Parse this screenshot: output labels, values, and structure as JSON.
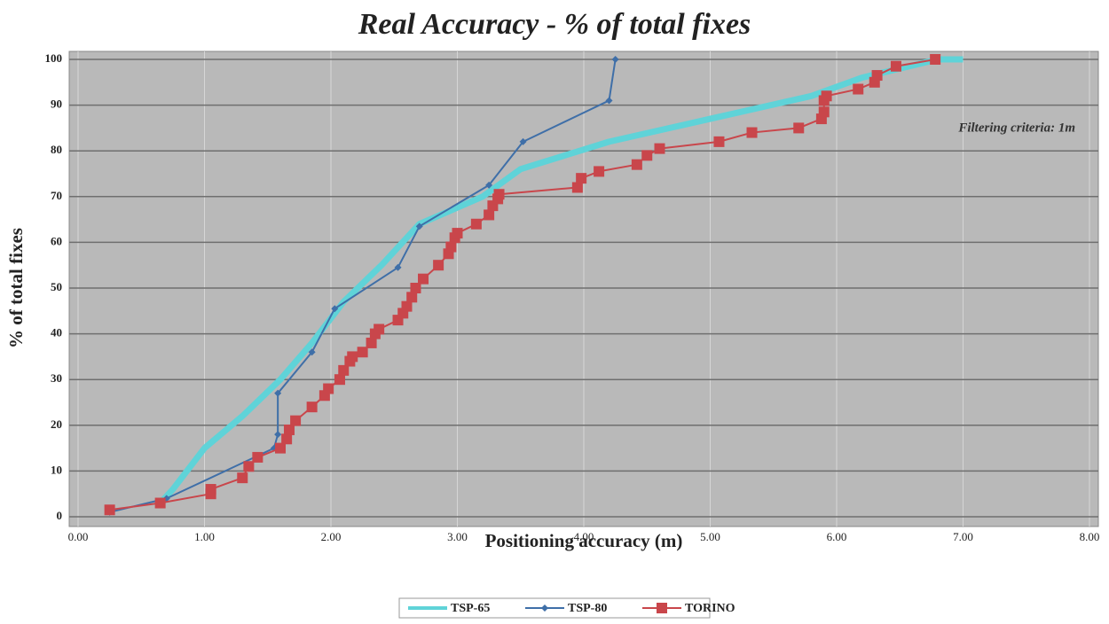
{
  "chart_data": {
    "type": "line",
    "title": "Real Accuracy - % of total fixes",
    "x_label": "Positioning accuracy (m)",
    "y_label": "% of total fixes",
    "annotation": "Filtering criteria: 1m",
    "xlim": [
      0,
      8
    ],
    "xticks": [
      {
        "value": 0,
        "label": "0.00"
      },
      {
        "value": 1,
        "label": "1.00"
      },
      {
        "value": 2,
        "label": "2.00"
      },
      {
        "value": 3,
        "label": "3.00"
      },
      {
        "value": 4,
        "label": "4.00"
      },
      {
        "value": 5,
        "label": "5.00"
      },
      {
        "value": 6,
        "label": "6.00"
      },
      {
        "value": 7,
        "label": "7.00"
      },
      {
        "value": 8,
        "label": "8.00"
      }
    ],
    "ylim": [
      0,
      100
    ],
    "yticks": [
      0,
      10,
      20,
      30,
      40,
      50,
      60,
      70,
      80,
      90,
      100
    ],
    "grid": true,
    "legend": "bottom",
    "series": [
      {
        "name": "TSP-65",
        "color": "#5fd3d8",
        "line_width": 7,
        "marker": "none",
        "x": [
          0.65,
          0.75,
          1.0,
          1.3,
          1.6,
          1.85,
          2.1,
          2.4,
          2.7,
          3.2,
          3.5,
          4.2,
          5.0,
          5.8,
          6.2,
          6.8,
          7.0
        ],
        "values": [
          3,
          6,
          15,
          22,
          30,
          38,
          47,
          55,
          64,
          70,
          76,
          82,
          87,
          92,
          96,
          100,
          100
        ]
      },
      {
        "name": "TSP-80",
        "color": "#3f6fa8",
        "line_width": 2,
        "marker": "diamond",
        "x": [
          0.25,
          0.7,
          1.55,
          1.58,
          1.58,
          1.85,
          2.03,
          2.53,
          2.7,
          3.25,
          3.52,
          4.2,
          4.25
        ],
        "values": [
          1,
          4,
          15,
          18,
          27,
          36,
          45.5,
          54.5,
          63.5,
          72.5,
          82,
          91,
          100
        ]
      },
      {
        "name": "TORINO",
        "color": "#c9464b",
        "line_width": 2,
        "marker": "square",
        "x": [
          0.25,
          0.65,
          1.05,
          1.05,
          1.3,
          1.35,
          1.42,
          1.6,
          1.65,
          1.67,
          1.72,
          1.85,
          1.95,
          1.98,
          2.07,
          2.1,
          2.15,
          2.17,
          2.25,
          2.32,
          2.35,
          2.38,
          2.53,
          2.57,
          2.6,
          2.64,
          2.67,
          2.73,
          2.85,
          2.93,
          2.95,
          2.98,
          3.0,
          3.15,
          3.25,
          3.28,
          3.32,
          3.33,
          3.95,
          3.98,
          4.12,
          4.42,
          4.5,
          4.6,
          5.07,
          5.33,
          5.7,
          5.88,
          5.9,
          5.9,
          5.92,
          6.17,
          6.3,
          6.32,
          6.47,
          6.78
        ],
        "values": [
          1.5,
          3,
          5,
          6,
          8.5,
          11,
          13,
          15,
          17,
          19,
          21,
          24,
          26.5,
          28,
          30,
          32,
          34,
          35,
          36,
          38,
          40,
          41,
          43,
          44.5,
          46,
          48,
          50,
          52,
          55,
          57.5,
          59,
          61,
          62,
          64,
          66,
          68,
          69.5,
          70.5,
          72,
          74,
          75.5,
          77,
          79,
          80.5,
          82,
          84,
          85,
          87,
          88.5,
          91,
          92,
          93.5,
          95,
          96.5,
          98.5,
          100
        ]
      }
    ]
  }
}
